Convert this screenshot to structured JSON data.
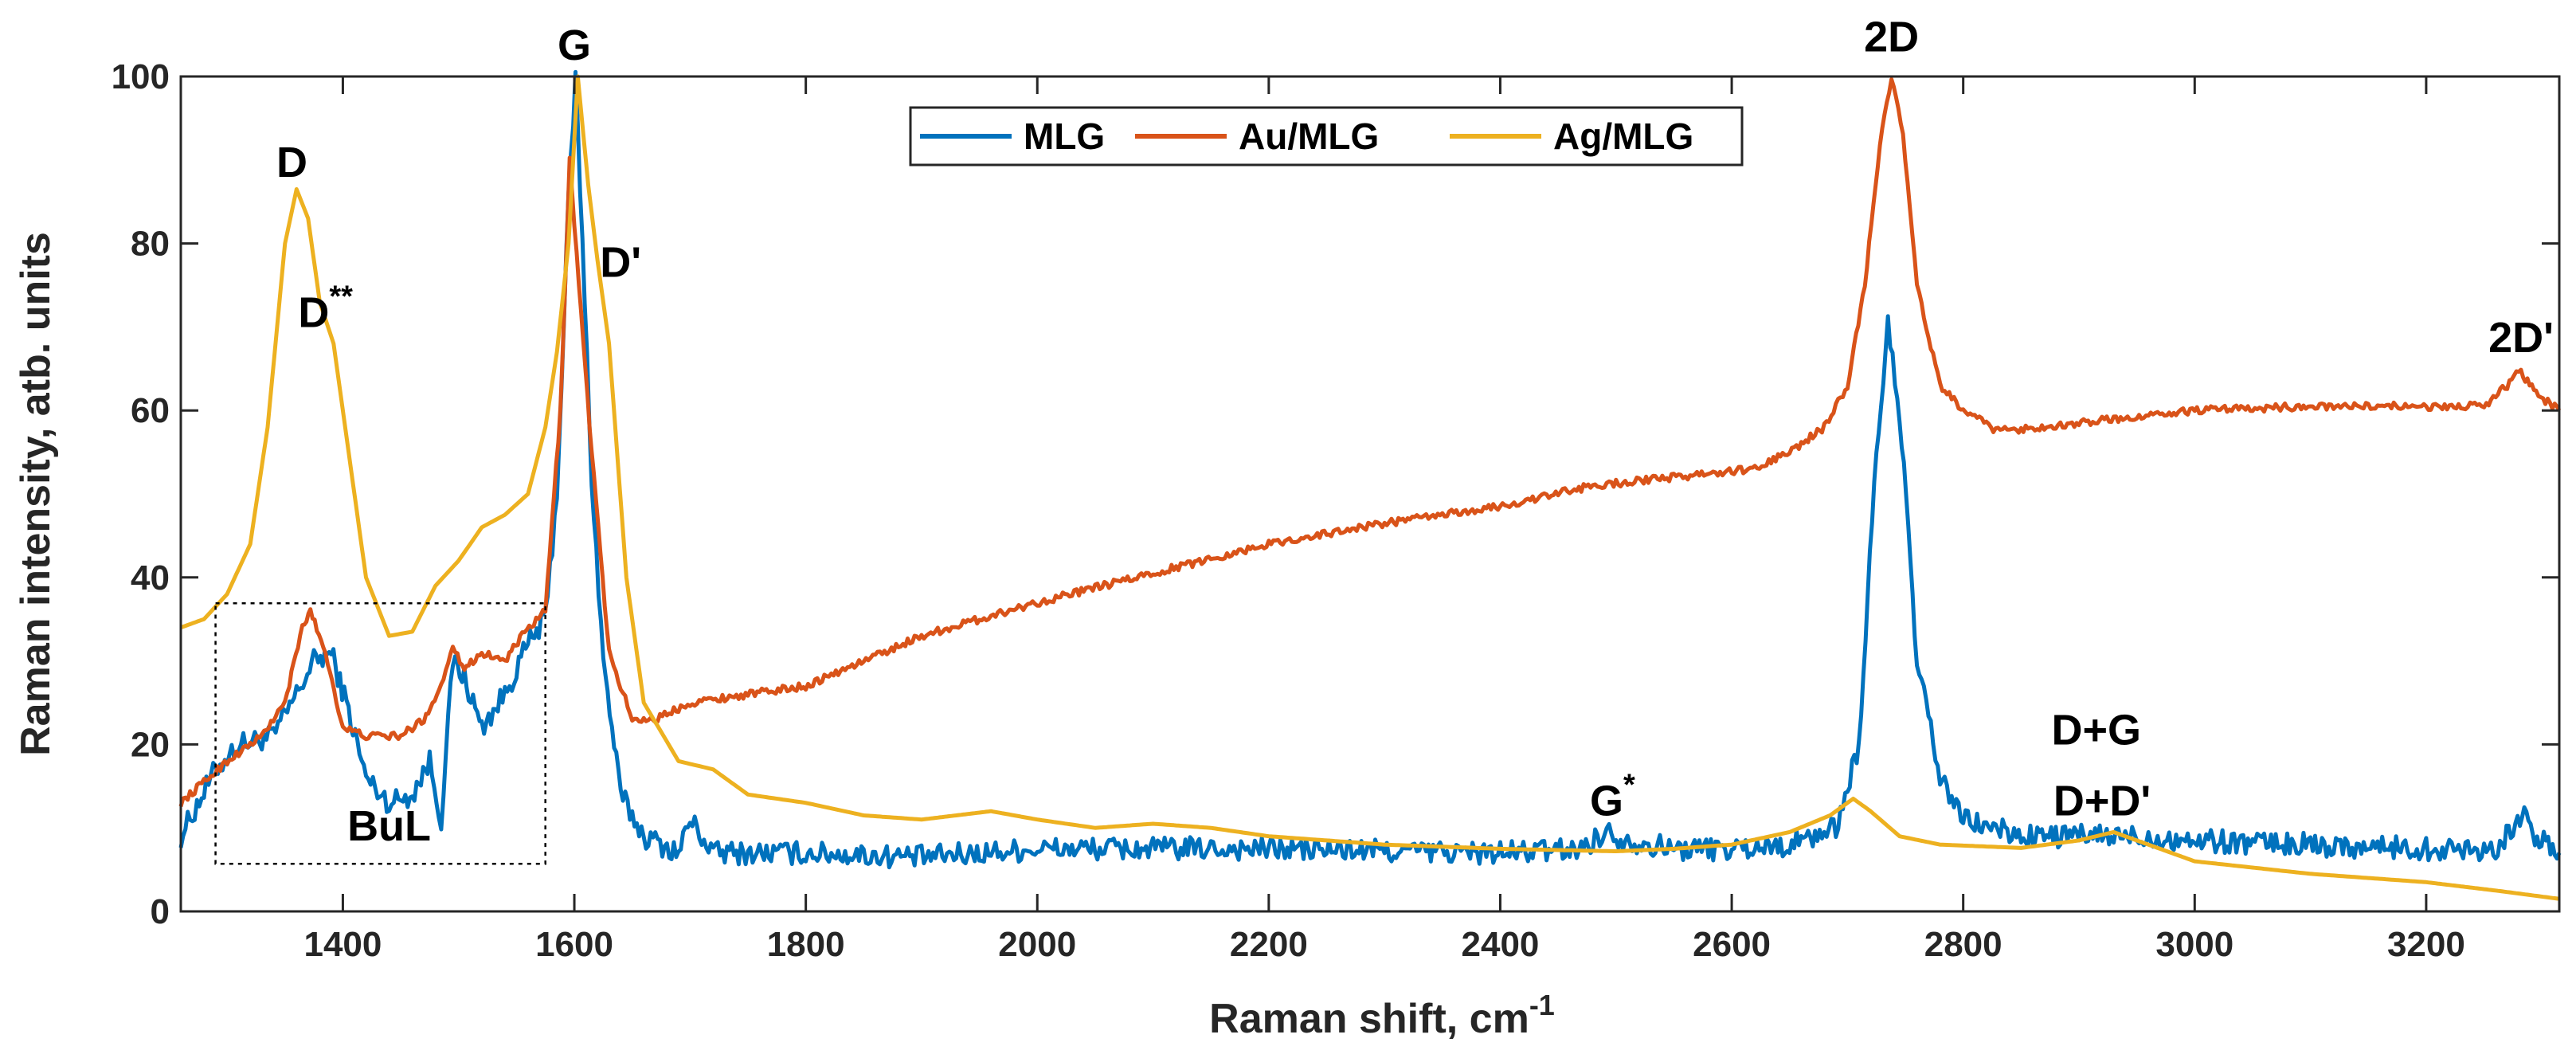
{
  "chart_data": {
    "type": "line",
    "xlabel": "Raman shift, cm",
    "xlabel_sup": "-1",
    "ylabel": "Raman intensity, atb. units",
    "xlim": [
      1260,
      3315
    ],
    "ylim": [
      0,
      100
    ],
    "xticks": [
      1400,
      1600,
      1800,
      2000,
      2200,
      2400,
      2600,
      2800,
      3000,
      3200
    ],
    "yticks": [
      0,
      20,
      40,
      60,
      80,
      100
    ],
    "legend_position": "top-center",
    "series": [
      {
        "name": "MLG",
        "color": "#0072BD",
        "noise": 1.4,
        "points": [
          [
            1260,
            9
          ],
          [
            1290,
            17
          ],
          [
            1310,
            20
          ],
          [
            1340,
            21
          ],
          [
            1360,
            26
          ],
          [
            1375,
            30
          ],
          [
            1390,
            31
          ],
          [
            1405,
            24
          ],
          [
            1420,
            16
          ],
          [
            1440,
            13
          ],
          [
            1460,
            14
          ],
          [
            1475,
            18
          ],
          [
            1485,
            11
          ],
          [
            1495,
            30
          ],
          [
            1505,
            28
          ],
          [
            1520,
            22
          ],
          [
            1540,
            26
          ],
          [
            1560,
            32
          ],
          [
            1575,
            35
          ],
          [
            1585,
            50
          ],
          [
            1595,
            85
          ],
          [
            1601,
            100
          ],
          [
            1607,
            80
          ],
          [
            1615,
            52
          ],
          [
            1625,
            30
          ],
          [
            1640,
            14
          ],
          [
            1660,
            9
          ],
          [
            1690,
            7
          ],
          [
            1700,
            11
          ],
          [
            1720,
            7
          ],
          [
            1800,
            7
          ],
          [
            1900,
            6.5
          ],
          [
            2000,
            7.5
          ],
          [
            2200,
            7.5
          ],
          [
            2400,
            7
          ],
          [
            2470,
            7.5
          ],
          [
            2490,
            9.5
          ],
          [
            2510,
            8.5
          ],
          [
            2550,
            7.5
          ],
          [
            2600,
            7.5
          ],
          [
            2650,
            8
          ],
          [
            2690,
            10
          ],
          [
            2710,
            20
          ],
          [
            2725,
            55
          ],
          [
            2735,
            70
          ],
          [
            2745,
            60
          ],
          [
            2760,
            30
          ],
          [
            2780,
            16
          ],
          [
            2800,
            11
          ],
          [
            2850,
            9
          ],
          [
            2900,
            9
          ],
          [
            2950,
            9
          ],
          [
            3000,
            8.5
          ],
          [
            3100,
            8
          ],
          [
            3200,
            7.5
          ],
          [
            3260,
            7.5
          ],
          [
            3275,
            10
          ],
          [
            3283,
            12
          ],
          [
            3292,
            9
          ],
          [
            3315,
            7
          ]
        ]
      },
      {
        "name": "Au/MLG",
        "color": "#D95319",
        "noise": 0.45,
        "points": [
          [
            1260,
            13
          ],
          [
            1300,
            18
          ],
          [
            1330,
            21
          ],
          [
            1350,
            25
          ],
          [
            1365,
            34
          ],
          [
            1372,
            36
          ],
          [
            1385,
            31
          ],
          [
            1400,
            22
          ],
          [
            1420,
            21
          ],
          [
            1450,
            21
          ],
          [
            1470,
            23
          ],
          [
            1485,
            27
          ],
          [
            1495,
            32
          ],
          [
            1505,
            29
          ],
          [
            1520,
            31
          ],
          [
            1540,
            30
          ],
          [
            1555,
            33
          ],
          [
            1575,
            36
          ],
          [
            1588,
            60
          ],
          [
            1596,
            90
          ],
          [
            1604,
            75
          ],
          [
            1615,
            55
          ],
          [
            1630,
            31
          ],
          [
            1650,
            23
          ],
          [
            1670,
            23
          ],
          [
            1700,
            25
          ],
          [
            1800,
            27
          ],
          [
            1900,
            33
          ],
          [
            2000,
            37
          ],
          [
            2100,
            40.5
          ],
          [
            2200,
            44
          ],
          [
            2300,
            46.5
          ],
          [
            2400,
            48.5
          ],
          [
            2480,
            51
          ],
          [
            2550,
            52
          ],
          [
            2620,
            53
          ],
          [
            2650,
            55
          ],
          [
            2680,
            58
          ],
          [
            2700,
            63
          ],
          [
            2715,
            75
          ],
          [
            2728,
            92
          ],
          [
            2738,
            100
          ],
          [
            2748,
            93
          ],
          [
            2760,
            75
          ],
          [
            2780,
            63
          ],
          [
            2800,
            60
          ],
          [
            2830,
            57.5
          ],
          [
            2900,
            58.5
          ],
          [
            3000,
            60
          ],
          [
            3100,
            60.5
          ],
          [
            3200,
            60.5
          ],
          [
            3250,
            60.5
          ],
          [
            3270,
            63
          ],
          [
            3280,
            65
          ],
          [
            3295,
            62
          ],
          [
            3315,
            60
          ]
        ]
      },
      {
        "name": "Ag/MLG",
        "color": "#EDB120",
        "noise": 0,
        "points": [
          [
            1260,
            34
          ],
          [
            1280,
            35
          ],
          [
            1300,
            38
          ],
          [
            1320,
            44
          ],
          [
            1335,
            58
          ],
          [
            1350,
            80
          ],
          [
            1360,
            86.5
          ],
          [
            1370,
            83
          ],
          [
            1380,
            73
          ],
          [
            1392,
            68
          ],
          [
            1405,
            55
          ],
          [
            1420,
            40
          ],
          [
            1440,
            33
          ],
          [
            1460,
            33.5
          ],
          [
            1480,
            39
          ],
          [
            1500,
            42
          ],
          [
            1520,
            46
          ],
          [
            1540,
            47.5
          ],
          [
            1560,
            50
          ],
          [
            1575,
            58
          ],
          [
            1585,
            67
          ],
          [
            1595,
            80
          ],
          [
            1603,
            100
          ],
          [
            1612,
            87
          ],
          [
            1620,
            78
          ],
          [
            1630,
            68
          ],
          [
            1645,
            40
          ],
          [
            1660,
            25
          ],
          [
            1690,
            18
          ],
          [
            1720,
            17
          ],
          [
            1750,
            14
          ],
          [
            1800,
            13
          ],
          [
            1850,
            11.5
          ],
          [
            1900,
            11
          ],
          [
            1960,
            12
          ],
          [
            2000,
            11
          ],
          [
            2050,
            10
          ],
          [
            2100,
            10.5
          ],
          [
            2150,
            10
          ],
          [
            2200,
            9
          ],
          [
            2300,
            8
          ],
          [
            2400,
            7.5
          ],
          [
            2500,
            7.2
          ],
          [
            2550,
            7.5
          ],
          [
            2600,
            8
          ],
          [
            2650,
            9.5
          ],
          [
            2685,
            11.5
          ],
          [
            2705,
            13.5
          ],
          [
            2720,
            12
          ],
          [
            2745,
            9
          ],
          [
            2780,
            8
          ],
          [
            2850,
            7.6
          ],
          [
            2900,
            8.5
          ],
          [
            2930,
            9.5
          ],
          [
            2960,
            8
          ],
          [
            3000,
            6
          ],
          [
            3100,
            4.5
          ],
          [
            3200,
            3.5
          ],
          [
            3260,
            2.5
          ],
          [
            3315,
            1.5
          ]
        ]
      }
    ],
    "annotations": [
      {
        "text": "G",
        "x": 1600,
        "y": 102
      },
      {
        "text": "2D",
        "x": 1000,
        "y": 0
      },
      {
        "text": "D",
        "x": 1356,
        "y": 88
      },
      {
        "text": "D",
        "sup": "**",
        "x": 1385,
        "y": 70
      },
      {
        "text": "D'",
        "x": 1640,
        "y": 76
      },
      {
        "text": "2D'",
        "x": 3282,
        "y": 67
      },
      {
        "text": "G",
        "sup": "*",
        "x": 2497,
        "y": 11.5
      },
      {
        "text": "D+G",
        "x": 2915,
        "y": 20
      },
      {
        "text": "D+D'",
        "x": 2920,
        "y": 11.5
      },
      {
        "text": "BuL",
        "x": 1440,
        "y": 8.5
      }
    ],
    "bul_box": {
      "x0": 1290,
      "x1": 1575,
      "y0": 5.7,
      "y1": 36.9
    }
  }
}
